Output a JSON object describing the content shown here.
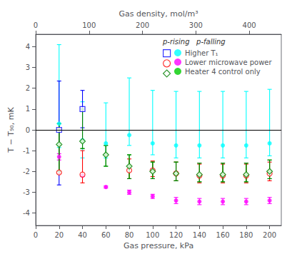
{
  "chart_data": {
    "type": "scatter",
    "xlabel": "Gas pressure, kPa",
    "ylabel": "T − T₉₀, mK",
    "x2label": "Gas density, mol/m³",
    "x": [
      20,
      40,
      60,
      80,
      100,
      120,
      140,
      160,
      180,
      200
    ],
    "xlim": [
      0,
      210
    ],
    "xticks": [
      0,
      20,
      40,
      60,
      80,
      100,
      120,
      140,
      160,
      180,
      200
    ],
    "x2lim": [
      0,
      460
    ],
    "x2ticks": [
      0,
      100,
      200,
      300,
      400
    ],
    "ylim": [
      -4.6,
      4.6
    ],
    "yticks": [
      -4,
      -3,
      -2,
      -1,
      0,
      1,
      2,
      3,
      4
    ],
    "hline": 0,
    "grid": false,
    "legend": "upper right",
    "legend_title": "p-rising   p-falling",
    "series": [
      {
        "name": "Higher T₁",
        "rising": {
          "color": "blue",
          "marker": "open_square",
          "values": [
            0.0,
            1.0,
            null,
            null,
            null,
            null,
            null,
            null,
            null,
            null
          ],
          "yerr_lo": [
            2.65,
            0.9,
            null,
            null,
            null,
            null,
            null,
            null,
            null,
            null
          ],
          "yerr_hi": [
            2.35,
            0.9,
            null,
            null,
            null,
            null,
            null,
            null,
            null,
            null
          ]
        },
        "falling": {
          "color": "cyan",
          "marker": "dot",
          "values": [
            0.3,
            -0.5,
            -0.65,
            -0.25,
            -0.65,
            -0.75,
            -0.75,
            -0.75,
            -0.75,
            -0.65
          ],
          "yerr_lo": [
            1.15,
            0.85,
            0.7,
            0.5,
            0.55,
            0.6,
            0.6,
            0.6,
            0.6,
            0.6
          ],
          "yerr_hi": [
            3.8,
            1.85,
            1.95,
            2.75,
            2.55,
            2.6,
            2.6,
            2.6,
            2.6,
            2.6
          ]
        }
      },
      {
        "name": "Lower microwave power",
        "rising": {
          "color": "red",
          "marker": "open_circle",
          "values": [
            -2.05,
            -2.15,
            null,
            -1.95,
            -1.95,
            -2.1,
            -2.2,
            -2.2,
            -2.2,
            -2.1
          ],
          "yerr_lo": [
            0.05,
            0.4,
            null,
            0.4,
            0.3,
            0.35,
            0.35,
            0.35,
            0.35,
            0.35
          ],
          "yerr_hi": [
            2.1,
            1.15,
            null,
            0.55,
            0.45,
            0.55,
            0.55,
            0.55,
            0.55,
            0.55
          ]
        },
        "falling": {
          "color": "magenta",
          "marker": "dot",
          "values": [
            -1.3,
            -2.2,
            -2.75,
            -3.0,
            -3.2,
            -3.4,
            -3.45,
            -3.45,
            -3.45,
            -3.4
          ],
          "yerr_lo": [
            0.15,
            0.05,
            0.05,
            0.1,
            0.1,
            0.15,
            0.15,
            0.15,
            0.15,
            0.15
          ],
          "yerr_hi": [
            0.15,
            0.05,
            0.05,
            0.1,
            0.1,
            0.15,
            0.15,
            0.15,
            0.15,
            0.15
          ]
        }
      },
      {
        "name": "Heater 4 control only",
        "rising": {
          "color": "#008000",
          "marker": "open_diamond",
          "values": [
            -0.7,
            -0.55,
            -1.2,
            -1.75,
            -2.0,
            -2.1,
            -2.15,
            -2.15,
            -2.15,
            -2.0
          ],
          "yerr_lo": [
            1.3,
            0.35,
            0.55,
            0.6,
            0.35,
            0.35,
            0.35,
            0.35,
            0.35,
            0.35
          ],
          "yerr_hi": [
            1.0,
            1.55,
            0.45,
            0.55,
            0.45,
            0.55,
            0.55,
            0.55,
            0.55,
            0.55
          ]
        },
        "falling": {
          "color": "#00cc00",
          "marker": "dot",
          "values": [
            -0.7,
            -0.55,
            -1.2,
            -1.75,
            -2.0,
            -2.1,
            -2.15,
            -2.15,
            -2.15,
            -2.0
          ],
          "yerr_lo": [
            1.3,
            0.35,
            0.55,
            0.6,
            0.35,
            0.35,
            0.35,
            0.35,
            0.35,
            0.35
          ],
          "yerr_hi": [
            1.0,
            1.55,
            0.45,
            0.55,
            0.45,
            0.55,
            0.55,
            0.55,
            0.55,
            0.55
          ]
        }
      }
    ]
  }
}
